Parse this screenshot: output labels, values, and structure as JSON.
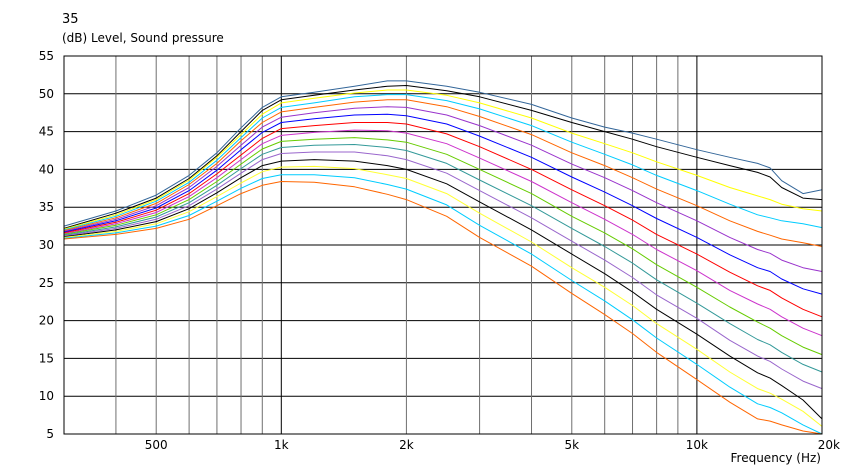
{
  "header": {
    "top_value": "35",
    "y_title": "(dB)  Level, Sound pressure",
    "x_title": "Frequency  (Hz)"
  },
  "chart_data": {
    "type": "line",
    "title": "",
    "xlabel": "Frequency  (Hz)",
    "ylabel": "(dB)  Level, Sound pressure",
    "xscale": "log",
    "xlim": [
      300,
      20000
    ],
    "ylim": [
      5,
      55
    ],
    "grid": true,
    "legend": "none",
    "x_tick_labels": [
      {
        "value": 500,
        "label": "500"
      },
      {
        "value": 1000,
        "label": "1k"
      },
      {
        "value": 2000,
        "label": "2k"
      },
      {
        "value": 5000,
        "label": "5k"
      },
      {
        "value": 10000,
        "label": "10k"
      },
      {
        "value": 20000,
        "label": "20k"
      }
    ],
    "y_ticks": [
      5,
      10,
      15,
      20,
      25,
      30,
      35,
      40,
      45,
      50,
      55
    ],
    "x": [
      300,
      400,
      500,
      600,
      700,
      800,
      900,
      1000,
      1200,
      1500,
      1800,
      2000,
      2500,
      3000,
      4000,
      5000,
      6000,
      7000,
      8000,
      10000,
      12000,
      14000,
      15000,
      16000,
      18000,
      20000
    ],
    "series": [
      {
        "color": "#336699",
        "values": [
          32.5,
          34.5,
          36.6,
          39.2,
          42.2,
          45.5,
          48.2,
          49.6,
          50.2,
          51.0,
          51.7,
          51.7,
          51.0,
          50.2,
          48.6,
          46.8,
          45.6,
          44.8,
          44.0,
          42.6,
          41.6,
          40.8,
          40.2,
          38.5,
          36.8,
          37.3
        ]
      },
      {
        "color": "#000000",
        "values": [
          32.2,
          34.2,
          36.2,
          38.8,
          41.8,
          45.0,
          47.8,
          49.2,
          49.8,
          50.5,
          51.0,
          51.1,
          50.4,
          49.6,
          47.8,
          46.2,
          45.0,
          44.0,
          43.0,
          41.6,
          40.5,
          39.6,
          39.0,
          37.6,
          36.2,
          36.0
        ]
      },
      {
        "color": "#ffff00",
        "values": [
          32.1,
          34.0,
          36.0,
          38.6,
          41.6,
          44.6,
          47.3,
          48.8,
          49.4,
          50.1,
          50.5,
          50.5,
          49.8,
          48.8,
          46.8,
          44.8,
          43.4,
          42.2,
          41.0,
          39.2,
          37.6,
          36.5,
          36.0,
          35.4,
          34.8,
          34.5
        ]
      },
      {
        "color": "#00ccff",
        "values": [
          32.0,
          33.8,
          35.8,
          38.3,
          41.2,
          44.2,
          46.8,
          48.2,
          48.8,
          49.6,
          49.9,
          49.9,
          49.1,
          48.0,
          45.8,
          43.6,
          42.0,
          40.6,
          39.2,
          37.2,
          35.4,
          34.0,
          33.6,
          33.2,
          32.8,
          32.3
        ]
      },
      {
        "color": "#ff6600",
        "values": [
          31.9,
          33.6,
          35.5,
          38.0,
          40.8,
          43.8,
          46.2,
          47.6,
          48.2,
          48.9,
          49.2,
          49.2,
          48.3,
          47.0,
          44.6,
          42.2,
          40.5,
          38.9,
          37.4,
          35.2,
          33.2,
          31.8,
          31.3,
          30.8,
          30.3,
          29.8
        ]
      },
      {
        "color": "#9933cc",
        "values": [
          31.8,
          33.4,
          35.2,
          37.6,
          40.4,
          43.2,
          45.6,
          46.9,
          47.5,
          48.1,
          48.3,
          48.2,
          47.2,
          45.8,
          43.2,
          40.7,
          38.9,
          37.2,
          35.6,
          33.2,
          31.0,
          29.4,
          28.9,
          28.0,
          27.0,
          26.5
        ]
      },
      {
        "color": "#0000ff",
        "values": [
          31.7,
          33.2,
          34.9,
          37.2,
          39.9,
          42.6,
          44.9,
          46.2,
          46.7,
          47.2,
          47.3,
          47.1,
          46.0,
          44.4,
          41.6,
          39.0,
          37.0,
          35.2,
          33.5,
          31.0,
          28.7,
          27.0,
          26.5,
          25.5,
          24.2,
          23.5
        ]
      },
      {
        "color": "#ff0000",
        "values": [
          31.6,
          33.0,
          34.6,
          36.8,
          39.4,
          41.9,
          44.1,
          45.4,
          45.8,
          46.2,
          46.2,
          46.0,
          44.7,
          43.0,
          40.0,
          37.3,
          35.2,
          33.3,
          31.4,
          28.8,
          26.4,
          24.6,
          24.0,
          23.0,
          21.5,
          20.5
        ]
      },
      {
        "color": "#cc33cc",
        "values": [
          31.5,
          32.8,
          34.3,
          36.4,
          38.9,
          41.3,
          43.4,
          44.5,
          44.9,
          45.2,
          45.1,
          44.8,
          43.4,
          41.5,
          38.4,
          35.6,
          33.4,
          31.4,
          29.4,
          26.6,
          24.0,
          22.2,
          21.5,
          20.5,
          19.0,
          18.0
        ]
      },
      {
        "color": "#66cc00",
        "values": [
          31.4,
          32.6,
          34.0,
          36.0,
          38.4,
          40.7,
          42.7,
          43.7,
          44.0,
          44.2,
          43.9,
          43.6,
          42.0,
          40.0,
          36.8,
          33.8,
          31.6,
          29.5,
          27.4,
          24.4,
          21.8,
          19.8,
          19.0,
          18.0,
          16.5,
          15.5
        ]
      },
      {
        "color": "#339999",
        "values": [
          31.3,
          32.4,
          33.7,
          35.6,
          37.9,
          40.1,
          42.0,
          42.9,
          43.2,
          43.3,
          42.9,
          42.5,
          40.8,
          38.6,
          35.2,
          32.2,
          29.8,
          27.6,
          25.4,
          22.3,
          19.6,
          17.5,
          16.8,
          15.8,
          14.2,
          13.2
        ]
      },
      {
        "color": "#9966cc",
        "values": [
          31.2,
          32.2,
          33.4,
          35.2,
          37.4,
          39.5,
          41.3,
          42.1,
          42.3,
          42.3,
          41.8,
          41.3,
          39.5,
          37.2,
          33.6,
          30.5,
          28.0,
          25.7,
          23.4,
          20.3,
          17.4,
          15.3,
          14.6,
          13.6,
          12.0,
          11.0
        ]
      },
      {
        "color": "#000000",
        "values": [
          31.1,
          32.0,
          33.1,
          34.8,
          36.9,
          38.9,
          40.5,
          41.1,
          41.3,
          41.1,
          40.5,
          40.0,
          38.1,
          35.7,
          32.0,
          28.8,
          26.2,
          23.8,
          21.5,
          18.2,
          15.3,
          13.1,
          12.4,
          11.4,
          9.5,
          7.0
        ]
      },
      {
        "color": "#ffff33",
        "values": [
          31.0,
          31.8,
          32.8,
          34.4,
          36.4,
          38.2,
          39.7,
          40.3,
          40.4,
          40.1,
          39.3,
          38.8,
          36.8,
          34.2,
          30.4,
          27.0,
          24.4,
          22.0,
          19.6,
          16.2,
          13.2,
          11.0,
          10.4,
          9.6,
          8.0,
          6.0
        ]
      },
      {
        "color": "#00ccff",
        "values": [
          30.9,
          31.6,
          32.5,
          33.9,
          35.8,
          37.5,
          38.8,
          39.3,
          39.3,
          38.9,
          38.0,
          37.4,
          35.3,
          32.6,
          28.8,
          25.3,
          22.6,
          20.1,
          17.7,
          14.2,
          11.2,
          9.0,
          8.5,
          7.8,
          6.2,
          5.0
        ]
      },
      {
        "color": "#ff6600",
        "values": [
          30.8,
          31.4,
          32.2,
          33.4,
          35.2,
          36.8,
          37.9,
          38.4,
          38.3,
          37.7,
          36.7,
          36.0,
          33.8,
          31.0,
          27.2,
          23.6,
          20.8,
          18.3,
          15.8,
          12.2,
          9.2,
          7.0,
          6.7,
          6.2,
          5.4,
          5.0
        ]
      }
    ]
  }
}
